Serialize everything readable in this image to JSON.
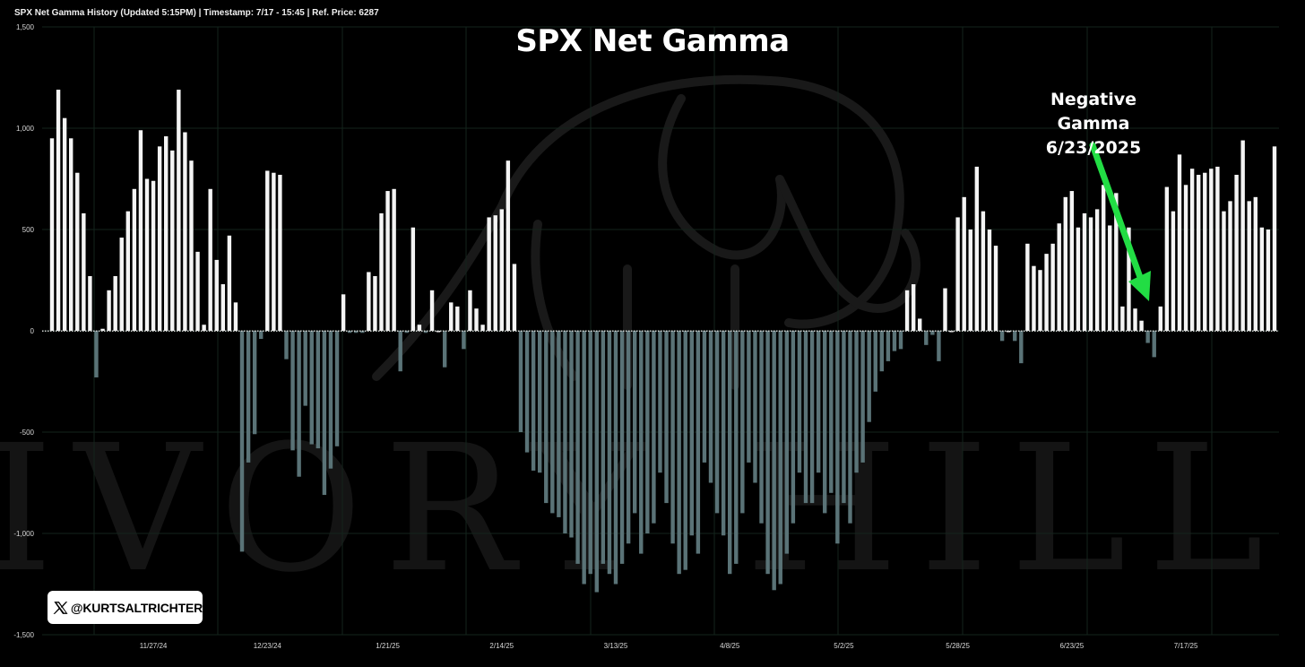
{
  "header": {
    "text": "SPX Net Gamma History (Updated 5:15PM) | Timestamp: 7/17 - 15:45  | Ref. Price: 6287"
  },
  "watermark": {
    "text": "IVORY HILL",
    "icon": "elephant-icon"
  },
  "badge": {
    "handle": "@KURTSALTRICHTER",
    "icon": "x-logo-icon"
  },
  "annotation": {
    "line1": "Negative Gamma",
    "line2": "6/23/2025",
    "arrow_color": "#22dd44"
  },
  "colors": {
    "positive": "#f4f4f4",
    "negative": "#5a7377",
    "background": "#000000",
    "grid": "#13241c"
  },
  "chart_data": {
    "type": "bar",
    "title": "SPX Net Gamma",
    "ylim": [
      -1500,
      1500
    ],
    "yticks": [
      -1500,
      -1000,
      -500,
      0,
      500,
      1000,
      1500
    ],
    "ytick_labels": [
      "-1,500",
      "-1,000",
      "-500",
      "0",
      "500",
      "1,000",
      "1,500"
    ],
    "xtick_labels": [
      {
        "label": "11/27/24",
        "index": 16
      },
      {
        "label": "12/23/24",
        "index": 34
      },
      {
        "label": "1/21/25",
        "index": 53
      },
      {
        "label": "2/14/25",
        "index": 71
      },
      {
        "label": "3/13/25",
        "index": 89
      },
      {
        "label": "4/8/25",
        "index": 107
      },
      {
        "label": "5/2/25",
        "index": 125
      },
      {
        "label": "5/28/25",
        "index": 143
      },
      {
        "label": "6/23/25",
        "index": 161
      },
      {
        "label": "7/17/25",
        "index": 179
      }
    ],
    "grid": true,
    "values": [
      950,
      1190,
      1050,
      950,
      780,
      580,
      270,
      -230,
      10,
      200,
      270,
      460,
      590,
      700,
      990,
      750,
      740,
      910,
      960,
      890,
      1190,
      980,
      840,
      390,
      30,
      700,
      350,
      230,
      470,
      140,
      -1090,
      -650,
      -510,
      -40,
      790,
      780,
      770,
      -140,
      -590,
      -720,
      -370,
      -560,
      -580,
      -810,
      -680,
      -570,
      180,
      -10,
      -10,
      -10,
      290,
      270,
      580,
      690,
      700,
      -200,
      -10,
      510,
      30,
      -10,
      200,
      0,
      -180,
      140,
      120,
      -90,
      200,
      110,
      30,
      560,
      570,
      600,
      840,
      330,
      -500,
      -600,
      -690,
      -700,
      -850,
      -900,
      -920,
      -1000,
      -1020,
      -1150,
      -1250,
      -1200,
      -1290,
      -1150,
      -1200,
      -1250,
      -1150,
      -1050,
      -900,
      -1100,
      -1000,
      -950,
      -700,
      -850,
      -1050,
      -1200,
      -1180,
      -1010,
      -1100,
      -650,
      -750,
      -900,
      -1010,
      -1200,
      -1150,
      -900,
      -650,
      -750,
      -950,
      -1200,
      -1280,
      -1250,
      -1100,
      -950,
      -700,
      -850,
      -850,
      -700,
      -900,
      -800,
      -1050,
      -850,
      -950,
      -700,
      -650,
      -450,
      -300,
      -200,
      -150,
      -100,
      -90,
      200,
      230,
      60,
      -70,
      -20,
      -150,
      210,
      0,
      560,
      660,
      500,
      810,
      590,
      500,
      420,
      -50,
      0,
      -50,
      -160,
      430,
      320,
      300,
      380,
      430,
      530,
      660,
      690,
      510,
      580,
      560,
      600,
      720,
      520,
      680,
      120,
      510,
      110,
      50,
      -60,
      -130,
      120,
      710,
      590,
      870,
      720,
      800,
      770,
      780,
      800,
      810,
      590,
      640,
      770,
      940,
      640,
      660,
      510,
      500,
      910
    ]
  }
}
